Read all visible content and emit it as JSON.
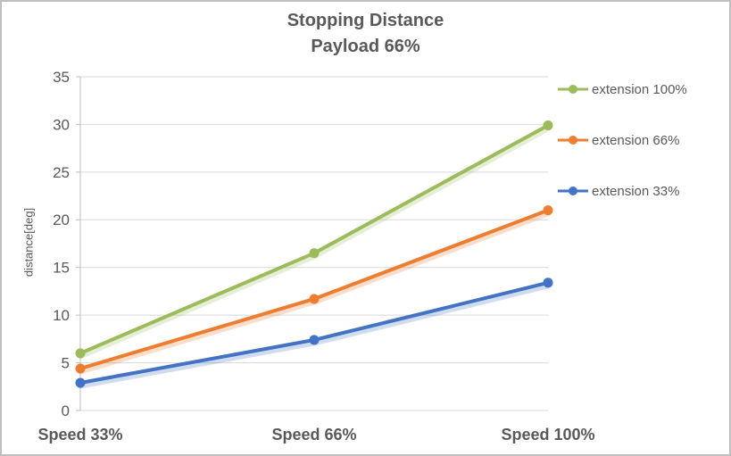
{
  "chart": {
    "border_color": "#BFBFBF",
    "background": "#FFFFFF",
    "text_color": "#595959",
    "grid_color": "#D9D9D9",
    "axis_color": "#BFBFBF"
  },
  "chart_data": {
    "type": "line",
    "title": "Stopping Distance",
    "subtitle": "Payload 66%",
    "ylabel": "distance[deg]",
    "xlabel": "",
    "ylim": [
      0,
      35
    ],
    "ytick_step": 5,
    "ytick_labels": [
      "0",
      "5",
      "10",
      "15",
      "20",
      "25",
      "30",
      "35"
    ],
    "grid": true,
    "legend_position": "right",
    "categories": [
      "Speed 33%",
      "Speed 66%",
      "Speed 100%"
    ],
    "series": [
      {
        "name": "extension 100%",
        "color": "#9CBB5C",
        "values": [
          6.0,
          16.5,
          29.9
        ]
      },
      {
        "name": "extension 66%",
        "color": "#ED7D31",
        "values": [
          4.4,
          11.7,
          21.0
        ]
      },
      {
        "name": "extension 33%",
        "color": "#4472C4",
        "values": [
          2.9,
          7.4,
          13.4
        ]
      }
    ]
  }
}
